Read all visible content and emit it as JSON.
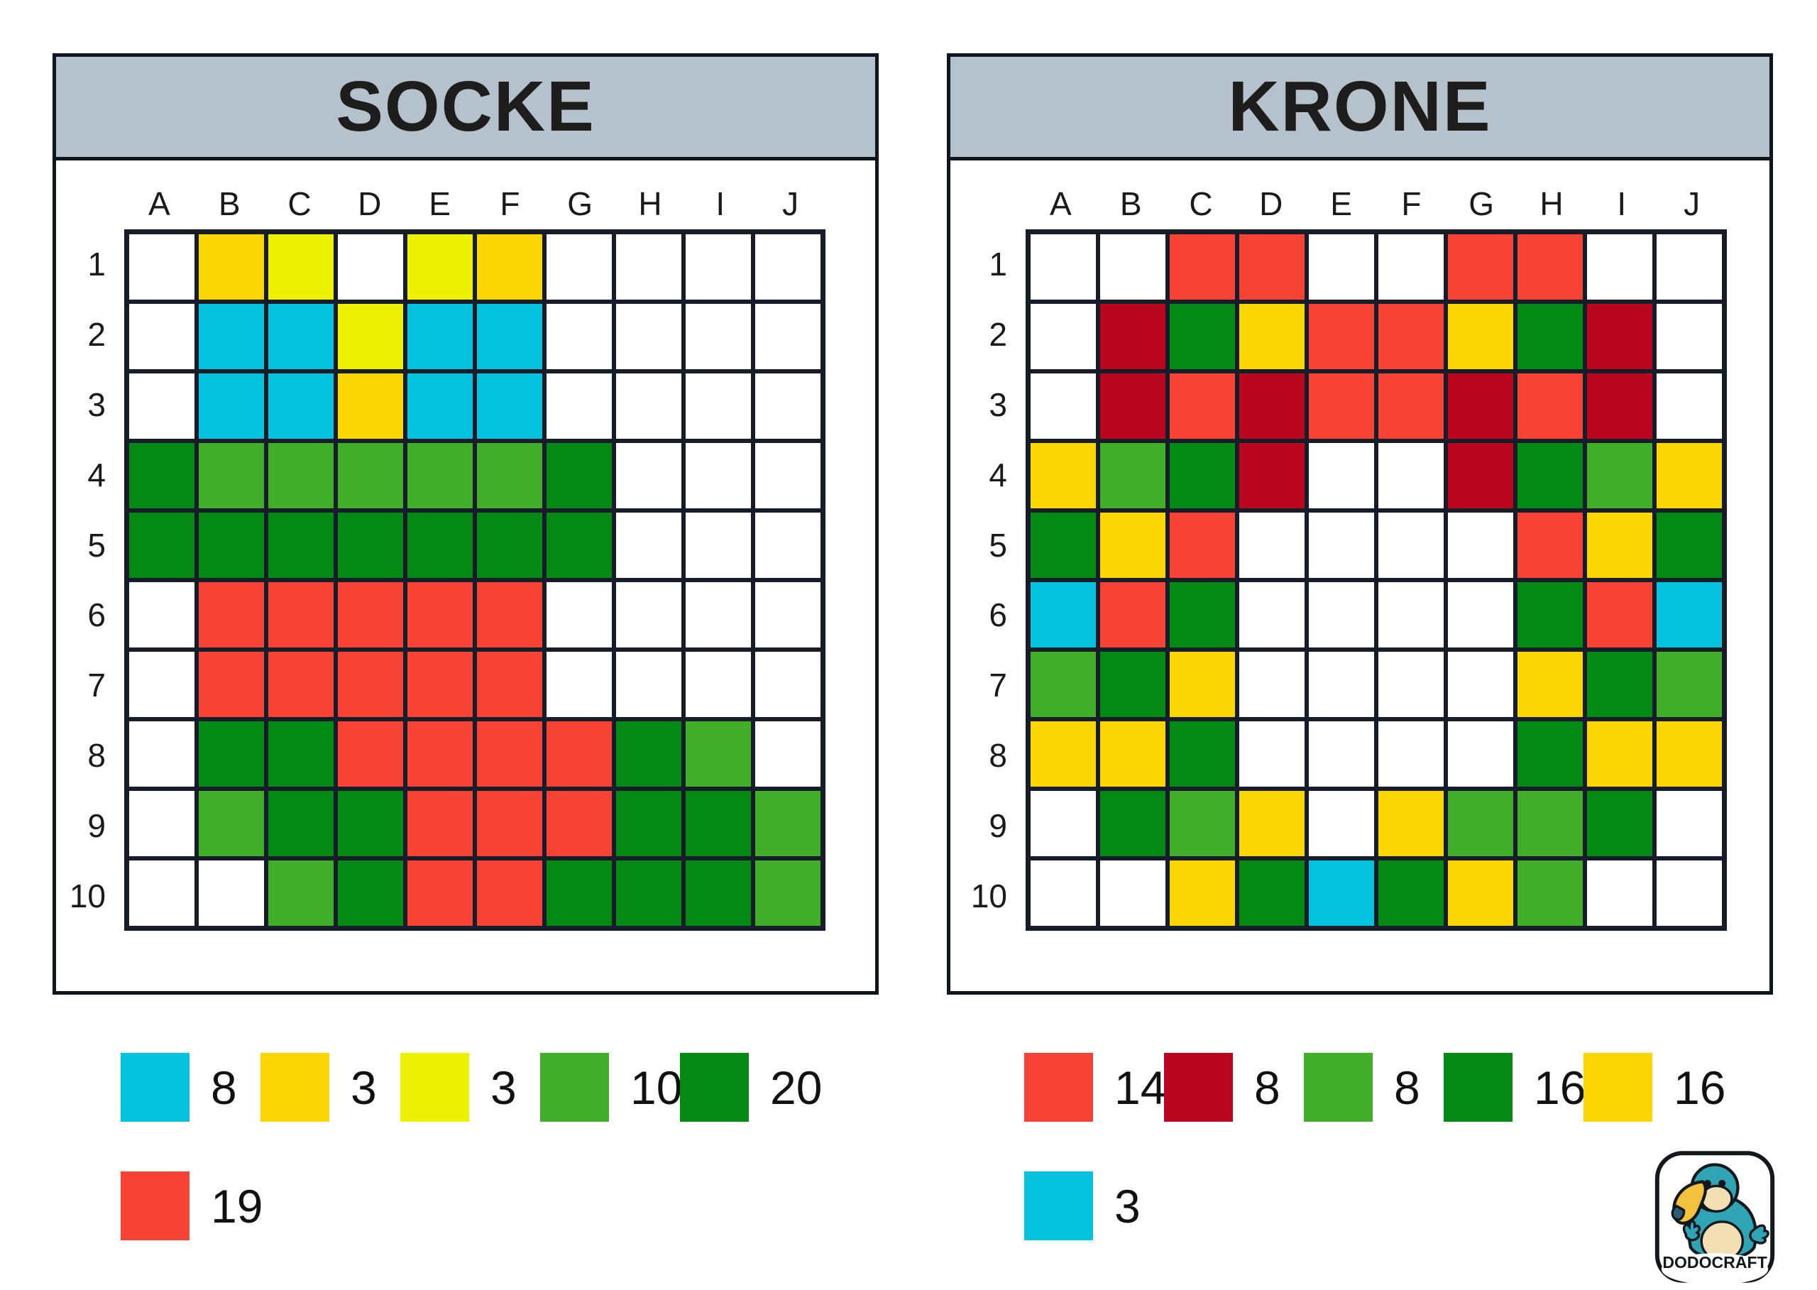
{
  "palette": {
    "W": "#FFFFFF",
    "C": "#05C3DE",
    "G": "#FCD602",
    "L": "#EDF102",
    "M": "#40AE28",
    "D": "#048A14",
    "R": "#F74336",
    "K": "#BB0620"
  },
  "colors": {
    "titlebar": "#B6C2CB",
    "grid_line": "#161D28",
    "panel_border": "#10161E"
  },
  "panels": [
    {
      "id": "socke",
      "title": "SOCKE",
      "column_labels": [
        "A",
        "B",
        "C",
        "D",
        "E",
        "F",
        "G",
        "H",
        "I",
        "J"
      ],
      "row_labels": [
        "1",
        "2",
        "3",
        "4",
        "5",
        "6",
        "7",
        "8",
        "9",
        "10"
      ],
      "rows": [
        "WGLWLGWWWW",
        "WCCLCCWWWW",
        "WCCGCCWWWW",
        "DMMMMMDWWW",
        "DDDDDDDWWW",
        "WRRRRRWWWW",
        "WRRRRRWWWW",
        "WDDRRRRDMW",
        "WMDDRRRDDM",
        "WWMDRRDDDM"
      ],
      "legend": [
        {
          "color": "C",
          "count": "8"
        },
        {
          "color": "G",
          "count": "3"
        },
        {
          "color": "L",
          "count": "3"
        },
        {
          "color": "M",
          "count": "10"
        },
        {
          "color": "D",
          "count": "20"
        },
        {
          "color": "R",
          "count": "19"
        }
      ]
    },
    {
      "id": "krone",
      "title": "KRONE",
      "column_labels": [
        "A",
        "B",
        "C",
        "D",
        "E",
        "F",
        "G",
        "H",
        "I",
        "J"
      ],
      "row_labels": [
        "1",
        "2",
        "3",
        "4",
        "5",
        "6",
        "7",
        "8",
        "9",
        "10"
      ],
      "rows": [
        "WWRRWWRRWW",
        "WKDGRRGDKW",
        "WKRKRRKRKW",
        "GMDKWWKDMG",
        "DGRWWWWRGD",
        "CRDWWWWDRC",
        "MDGWWWWGDM",
        "GGDWWWWDGG",
        "WDMGWGMMDW",
        "WWGDCDGMWW"
      ],
      "legend": [
        {
          "color": "R",
          "count": "14"
        },
        {
          "color": "K",
          "count": "8"
        },
        {
          "color": "M",
          "count": "8"
        },
        {
          "color": "D",
          "count": "16"
        },
        {
          "color": "G",
          "count": "16"
        },
        {
          "color": "C",
          "count": "3"
        }
      ]
    }
  ],
  "logo": {
    "text": "DODOCRAFT",
    "bird_color": "#2EA4B5",
    "beak_color": "#F2C23E",
    "beak_tip_color": "#2B5F78",
    "face_color": "#F2DFB4"
  }
}
